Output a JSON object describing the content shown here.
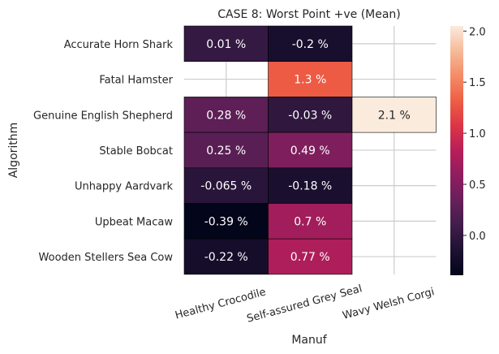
{
  "chart_data": {
    "type": "heatmap",
    "title": "CASE 8: Worst Point +ve (Mean)",
    "xlabel": "Manuf",
    "ylabel": "Algorithm",
    "x_categories": [
      "Healthy Crocodile",
      "Self-assured Grey Seal",
      "Wavy Welsh Corgi"
    ],
    "y_categories": [
      "Accurate Horn Shark",
      "Fatal Hamster",
      "Genuine English Shepherd",
      "Stable Bobcat",
      "Unhappy Aardvark",
      "Upbeat Macaw",
      "Wooden Stellers Sea Cow"
    ],
    "values": [
      [
        0.01,
        -0.2,
        null
      ],
      [
        null,
        1.3,
        null
      ],
      [
        0.28,
        -0.03,
        2.1
      ],
      [
        0.25,
        0.49,
        null
      ],
      [
        -0.065,
        -0.18,
        null
      ],
      [
        -0.39,
        0.7,
        null
      ],
      [
        -0.22,
        0.77,
        null
      ]
    ],
    "cell_labels": [
      [
        "0.01 %",
        "-0.2 %",
        ""
      ],
      [
        "",
        "1.3 %",
        ""
      ],
      [
        "0.28 %",
        "-0.03 %",
        "2.1 %"
      ],
      [
        "0.25 %",
        "0.49 %",
        ""
      ],
      [
        "-0.065 %",
        "-0.18 %",
        ""
      ],
      [
        "-0.39 %",
        "0.7 %",
        ""
      ],
      [
        "-0.22 %",
        "0.77 %",
        ""
      ]
    ],
    "colorbar": {
      "min": -0.39,
      "max": 2.05,
      "ticks": [
        0.0,
        0.5,
        1.0,
        1.5,
        2.0
      ],
      "tick_labels": [
        "0.0",
        "0.5",
        "1.0",
        "1.5",
        "2.0"
      ],
      "colormap": "rocket"
    },
    "grid": true
  }
}
